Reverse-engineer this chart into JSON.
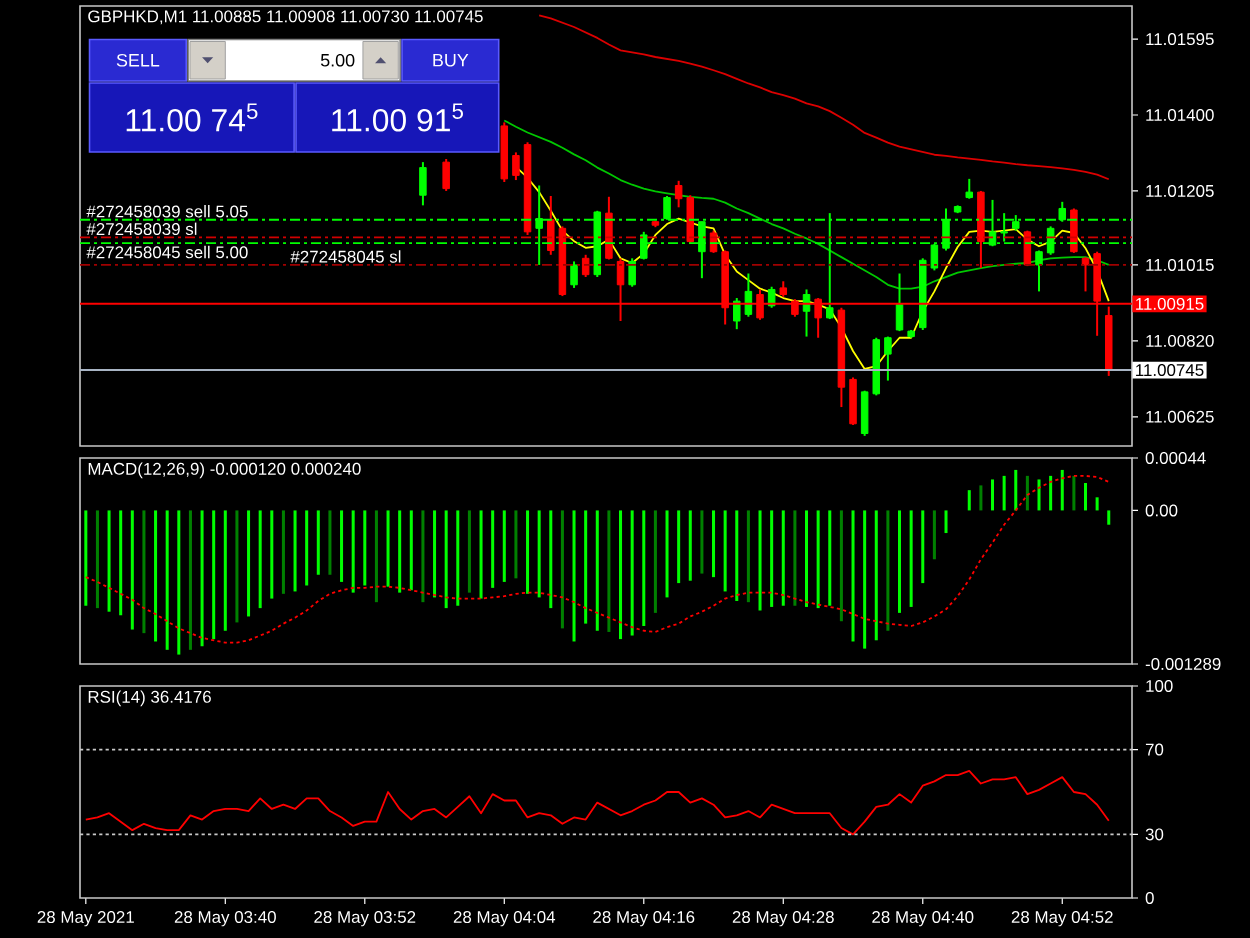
{
  "chart_data": [
    {
      "type": "candlestick",
      "title": "GBPHKD,M1 11.00885 11.00908 11.00730 11.00745",
      "categories": [
        null,
        null,
        null,
        null,
        null,
        null,
        null,
        null,
        null,
        null,
        null,
        null,
        null,
        null,
        null,
        null,
        null,
        null,
        null,
        null,
        null,
        null,
        null,
        null,
        null,
        null,
        null,
        null,
        null,
        null,
        null,
        null,
        null,
        null,
        null,
        null,
        null,
        null,
        null,
        null,
        null,
        null,
        null,
        null,
        null,
        null,
        null,
        null,
        null,
        null,
        null,
        null,
        null,
        null,
        null,
        null,
        null,
        null,
        null,
        null,
        null,
        null,
        null,
        null,
        null,
        null,
        null,
        null,
        null,
        null,
        null,
        null,
        null,
        null,
        null,
        null,
        null,
        null,
        null,
        null,
        null,
        null,
        null,
        null,
        null,
        null,
        null,
        null,
        null
      ],
      "ohlc": [
        null,
        null,
        null,
        null,
        null,
        null,
        null,
        null,
        null,
        null,
        null,
        null,
        null,
        null,
        null,
        null,
        null,
        null,
        null,
        null,
        null,
        null,
        null,
        null,
        null,
        null,
        null,
        null,
        null,
        [
          11.01194,
          11.01279,
          11.01168,
          11.01265
        ],
        null,
        [
          11.01279,
          11.01287,
          11.01205,
          11.01211
        ],
        null,
        null,
        null,
        null,
        [
          11.01372,
          11.01381,
          11.01228,
          11.01236
        ],
        [
          11.01296,
          11.01304,
          11.01233,
          11.01245
        ],
        [
          11.01324,
          11.0133,
          11.01092,
          11.011
        ],
        [
          11.01109,
          11.01219,
          11.01015,
          11.01134
        ],
        [
          11.01131,
          11.01192,
          11.01041,
          11.01052
        ],
        [
          11.01109,
          11.01114,
          11.00935,
          11.00939
        ],
        [
          11.00964,
          11.01024,
          11.00956,
          11.01015
        ],
        [
          11.01032,
          11.01041,
          11.00984,
          11.0099
        ],
        [
          11.0099,
          11.01154,
          11.00984,
          11.01151
        ],
        [
          11.01148,
          11.0119,
          11.01029,
          11.01032
        ],
        [
          11.01024,
          11.01032,
          11.00871,
          11.00964
        ],
        [
          11.00964,
          11.01032,
          11.00959,
          11.01024
        ],
        [
          11.01032,
          11.011,
          11.01029,
          11.01092
        ],
        [
          11.01126,
          11.01129,
          11.01112,
          11.01117
        ],
        [
          11.01134,
          11.01192,
          11.01131,
          11.01188
        ],
        [
          11.01219,
          11.01231,
          11.01163,
          11.01185
        ],
        [
          11.01188,
          11.01194,
          11.01071,
          11.01075
        ],
        [
          11.01049,
          11.01126,
          11.00981,
          11.01126
        ],
        [
          11.01097,
          11.01103,
          11.01046,
          11.01049
        ],
        [
          11.01049,
          11.01052,
          11.00862,
          11.00905
        ],
        [
          11.00871,
          11.0093,
          11.0085,
          11.00922
        ],
        [
          11.00888,
          11.00993,
          11.00882,
          11.00947
        ],
        [
          11.00939,
          11.00952,
          11.00874,
          11.00879
        ],
        [
          11.0091,
          11.00959,
          11.00905,
          11.00952
        ],
        [
          11.00956,
          11.00973,
          11.00933,
          11.00939
        ],
        [
          11.00922,
          11.00927,
          11.00882,
          11.00888
        ],
        [
          11.00896,
          11.00952,
          11.00831,
          11.00939
        ],
        [
          11.00927,
          11.0093,
          11.00828,
          11.00879
        ],
        [
          11.00879,
          11.01148,
          11.00876,
          11.00905
        ],
        [
          11.00899,
          11.00905,
          11.0065,
          11.00701
        ],
        [
          11.00721,
          11.00726,
          11.00604,
          11.00607
        ],
        [
          11.00582,
          11.00692,
          11.00576,
          11.00689
        ],
        [
          11.00684,
          11.00828,
          11.0068,
          11.00823
        ],
        [
          11.00786,
          11.00831,
          11.00718,
          11.00828
        ],
        [
          11.00848,
          11.00993,
          11.00845,
          11.00913
        ],
        [
          11.00831,
          11.00848,
          11.00828,
          11.00845
        ],
        [
          11.00854,
          11.01032,
          11.00848,
          11.01027
        ],
        [
          11.01007,
          11.01069,
          11.01001,
          11.01066
        ],
        [
          11.01058,
          11.0116,
          11.01052,
          11.01131
        ],
        [
          11.01151,
          11.01168,
          11.01148,
          11.01165
        ],
        [
          11.01188,
          11.01236,
          11.01185,
          11.01202
        ],
        [
          11.01202,
          11.01205,
          11.01007,
          11.01075
        ],
        [
          11.01066,
          11.01182,
          11.01063,
          11.011
        ],
        [
          11.01097,
          11.01148,
          11.01075,
          11.011
        ],
        [
          11.01109,
          11.01143,
          11.01103,
          11.01126
        ],
        [
          11.011,
          11.01103,
          11.01012,
          11.01015
        ],
        [
          11.01015,
          11.01052,
          11.00947,
          11.01049
        ],
        [
          11.01046,
          11.01114,
          11.01041,
          11.01109
        ],
        [
          11.01131,
          11.01177,
          11.01126,
          11.0116
        ],
        [
          11.01156,
          11.0116,
          11.01046,
          11.01049
        ],
        [
          11.01032,
          11.01035,
          11.00947,
          11.01015
        ],
        [
          11.01044,
          11.01049,
          11.00833,
          11.00922
        ],
        [
          11.00885,
          11.00908,
          11.0073,
          11.00745
        ]
      ],
      "colors": [
        null,
        null,
        null,
        null,
        null,
        null,
        null,
        null,
        null,
        null,
        null,
        null,
        null,
        null,
        null,
        null,
        null,
        null,
        null,
        null,
        null,
        null,
        null,
        null,
        null,
        null,
        null,
        null,
        null,
        "#00ff00",
        null,
        "#ff0000",
        null,
        null,
        null,
        null,
        "#ff0000",
        "#ff0000",
        "#ff0000",
        "#00ff00",
        "#ff0000",
        "#ff0000",
        "#00ff00",
        "#ff0000",
        "#00ff00",
        "#ff0000",
        "#ff0000",
        "#00ff00",
        "#00ff00",
        "#ff0000",
        "#00ff00",
        "#ff0000",
        "#ff0000",
        "#00ff00",
        "#ff0000",
        "#ff0000",
        "#00ff00",
        "#00ff00",
        "#ff0000",
        "#00ff00",
        "#ff0000",
        "#ff0000",
        "#00ff00",
        "#ff0000",
        "#00ff00",
        "#ff0000",
        "#ff0000",
        "#00ff00",
        "#00ff00",
        "#00ff00",
        "#00ff00",
        "#00ff00",
        "#00ff00",
        "#00ff00",
        "#00ff00",
        "#00ff00",
        "#00ff00",
        "#ff0000",
        "#00ff00",
        "#00ff00",
        "#00ff00",
        "#ff0000",
        "#00ff00",
        "#00ff00",
        "#00ff00",
        "#ff0000",
        "#ff0000",
        "#ff0000",
        "#ff0000"
      ],
      "series": [
        {
          "type": "line",
          "color": "#dc0000",
          "values": [
            null,
            null,
            null,
            null,
            null,
            null,
            null,
            null,
            null,
            null,
            null,
            null,
            null,
            null,
            null,
            null,
            null,
            null,
            null,
            null,
            null,
            null,
            null,
            null,
            null,
            null,
            null,
            null,
            null,
            null,
            null,
            null,
            null,
            null,
            null,
            null,
            null,
            null,
            null,
            11.01656,
            11.01648,
            11.01637,
            11.01626,
            11.01612,
            11.01598,
            11.01581,
            11.01566,
            11.01561,
            11.01556,
            11.01549,
            11.01544,
            11.01539,
            11.01532,
            11.01524,
            11.01515,
            11.01505,
            11.01493,
            11.01481,
            11.01471,
            11.01459,
            11.01451,
            11.01442,
            11.0143,
            11.01422,
            11.0141,
            11.01393,
            11.01375,
            11.01354,
            11.01342,
            11.01329,
            11.01319,
            11.01312,
            11.01305,
            11.01298,
            11.01295,
            11.01291,
            11.01288,
            11.01285,
            11.01281,
            11.01278,
            11.01274,
            11.01271,
            11.01269,
            11.01266,
            11.01263,
            11.01259,
            11.01254,
            11.01247,
            11.01235
          ]
        },
        {
          "type": "line",
          "color": "#00c800",
          "values": [
            null,
            null,
            null,
            null,
            null,
            null,
            null,
            null,
            null,
            null,
            null,
            null,
            null,
            null,
            null,
            null,
            null,
            null,
            null,
            null,
            null,
            null,
            null,
            null,
            null,
            null,
            null,
            null,
            null,
            null,
            null,
            null,
            null,
            null,
            null,
            null,
            11.01386,
            11.0137,
            11.01355,
            11.01343,
            11.01331,
            11.01316,
            11.01299,
            11.01284,
            11.01265,
            11.0125,
            11.01233,
            11.01221,
            11.01211,
            11.01204,
            11.01199,
            11.01194,
            11.0119,
            11.01187,
            11.01185,
            11.01175,
            11.0116,
            11.01148,
            11.01134,
            11.0112,
            11.01109,
            11.01095,
            11.01083,
            11.01069,
            11.01052,
            11.01035,
            11.01018,
            11.01001,
            11.00984,
            11.00964,
            11.00954,
            11.00954,
            11.00959,
            11.00973,
            11.00984,
            11.00995,
            11.01001,
            11.01007,
            11.01012,
            11.01015,
            11.01018,
            11.0102,
            11.01027,
            11.01032,
            11.01034,
            11.01035,
            11.01035,
            11.01027,
            11.01015
          ]
        },
        {
          "type": "line",
          "color": "#ffff00",
          "values": [
            null,
            null,
            null,
            null,
            null,
            null,
            null,
            null,
            null,
            null,
            null,
            null,
            null,
            null,
            null,
            null,
            null,
            null,
            null,
            null,
            null,
            null,
            null,
            null,
            null,
            null,
            null,
            null,
            null,
            null,
            null,
            null,
            null,
            null,
            null,
            null,
            null,
            11.01267,
            11.01239,
            11.01202,
            11.01154,
            11.01103,
            11.01076,
            11.01059,
            11.01063,
            11.0108,
            11.01032,
            11.0102,
            11.01044,
            11.01092,
            11.0112,
            11.01134,
            11.01124,
            11.01114,
            11.01109,
            11.01041,
            11.00998,
            11.00976,
            11.00954,
            11.00944,
            11.0093,
            11.00922,
            11.00922,
            11.00913,
            11.00901,
            11.00854,
            11.00794,
            11.00748,
            11.00755,
            11.00794,
            11.00828,
            11.00828,
            11.00896,
            11.00947,
            11.01007,
            11.01061,
            11.011,
            11.01103,
            11.011,
            11.01103,
            11.01107,
            11.0108,
            11.01063,
            11.01075,
            11.01103,
            11.01097,
            11.01058,
            11.01001,
            11.00922
          ]
        }
      ],
      "ylim": [
        11.0055,
        11.0168
      ],
      "yticks": [
        11.01595,
        {
          "value": 11.014,
          "label": "11.01400"
        },
        11.01205,
        11.01015,
        {
          "value": 11.0082,
          "label": "11.00820"
        },
        11.00625
      ],
      "ref_lines": [
        {
          "axis": "y",
          "value": 11.01131,
          "label": "#272458039 sell 5.05",
          "color": "#00ff00",
          "line_style": "dashdot"
        },
        {
          "axis": "y",
          "value": 11.01086,
          "label": "#272458039 sl",
          "color": "#d20000",
          "line_style": "dashdot"
        },
        {
          "axis": "y",
          "value": 11.01071,
          "label": "#272458045 sell 5.00",
          "color": "#00ff00",
          "line_style": "dashdot"
        },
        {
          "axis": "y",
          "value": 11.01015,
          "label": "#272458045 sl",
          "color": "#a00000",
          "line_style": "dashdot"
        },
        {
          "axis": "y",
          "value": 11.00915,
          "label": "11.00915",
          "color": "#ff0000",
          "line_style": "solid"
        },
        {
          "axis": "y",
          "value": 11.00745,
          "label": "11.00745",
          "color": "#a8b4c4",
          "line_style": "solid"
        }
      ],
      "annotations": [
        "SELL",
        "5.00",
        "BUY",
        "11.00 74$^{5}$",
        "11.00 91$^{5}$"
      ]
    },
    {
      "type": "bar",
      "title": "MACD(12,26,9) -0.000120 0.000240",
      "categories": [
        null,
        null,
        null,
        null,
        null,
        null,
        null,
        null,
        null,
        null,
        null,
        null,
        null,
        null,
        null,
        null,
        null,
        null,
        null,
        null,
        null,
        null,
        null,
        null,
        null,
        null,
        null,
        null,
        null,
        null,
        null,
        null,
        null,
        null,
        null,
        null,
        null,
        null,
        null,
        null,
        null,
        null,
        null,
        null,
        null,
        null,
        null,
        null,
        null,
        null,
        null,
        null,
        null,
        null,
        null,
        null,
        null,
        null,
        null,
        null,
        null,
        null,
        null,
        null,
        null,
        null,
        null,
        null,
        null,
        null,
        null,
        null,
        null,
        null,
        null,
        null,
        null,
        null,
        null,
        null,
        null,
        null,
        null,
        null,
        null,
        null,
        null,
        null,
        null
      ],
      "series": [
        {
          "type": "bar",
          "values": [
            -0.0008,
            -0.00082,
            -0.00085,
            -0.00088,
            -0.001,
            -0.00103,
            -0.0011,
            -0.00117,
            -0.00121,
            -0.00117,
            -0.00114,
            -0.00108,
            -0.00101,
            -0.00094,
            -0.00089,
            -0.00082,
            -0.00074,
            -0.0007,
            -0.00068,
            -0.00063,
            -0.00054,
            -0.00054,
            -0.0006,
            -0.00069,
            -0.00063,
            -0.00077,
            -0.00064,
            -0.00069,
            -0.00067,
            -0.00077,
            -0.00073,
            -0.00082,
            -0.0008,
            -0.00069,
            -0.00074,
            -0.00065,
            -0.0006,
            -0.00057,
            -0.0007,
            -0.00073,
            -0.00082,
            -0.00099,
            -0.0011,
            -0.00095,
            -0.00101,
            -0.00102,
            -0.00108,
            -0.00105,
            -0.00097,
            -0.00086,
            -0.00073,
            -0.00061,
            -0.00059,
            -0.00053,
            -0.00056,
            -0.00068,
            -0.00076,
            -0.00077,
            -0.00084,
            -0.00081,
            -0.0008,
            -0.0008,
            -0.00081,
            -0.00082,
            -0.0008,
            -0.00093,
            -0.0011,
            -0.00116,
            -0.00109,
            -0.00101,
            -0.00086,
            -0.00081,
            -0.00061,
            -0.00041,
            -0.00019,
            null,
            0.00017,
            0.00021,
            0.00026,
            0.00029,
            0.00034,
            0.00029,
            0.00026,
            0.00029,
            0.00034,
            0.00029,
            0.00023,
            0.00011,
            -0.00012
          ],
          "colors": [
            "#00ff00",
            "#008000",
            "#00ff00",
            "#00ff00",
            "#00ff00",
            "#008000",
            "#00ff00",
            "#00ff00",
            "#00ff00",
            "#008000",
            "#00ff00",
            "#00ff00",
            "#00ff00",
            "#008000",
            "#00ff00",
            "#00ff00",
            "#00ff00",
            "#008000",
            "#00ff00",
            "#00ff00",
            "#00ff00",
            "#008000",
            "#00ff00",
            "#00ff00",
            "#00ff00",
            "#008000",
            "#00ff00",
            "#00ff00",
            "#00ff00",
            "#008000",
            "#00ff00",
            "#00ff00",
            "#00ff00",
            "#008000",
            "#00ff00",
            "#00ff00",
            "#00ff00",
            "#008000",
            "#00ff00",
            "#00ff00",
            "#00ff00",
            "#008000",
            "#00ff00",
            "#00ff00",
            "#00ff00",
            "#008000",
            "#00ff00",
            "#00ff00",
            "#00ff00",
            "#008000",
            "#00ff00",
            "#00ff00",
            "#00ff00",
            "#008000",
            "#00ff00",
            "#00ff00",
            "#00ff00",
            "#008000",
            "#00ff00",
            "#00ff00",
            "#00ff00",
            "#008000",
            "#00ff00",
            "#00ff00",
            "#00ff00",
            "#008000",
            "#00ff00",
            "#00ff00",
            "#00ff00",
            "#008000",
            "#00ff00",
            "#00ff00",
            "#00ff00",
            "#008000",
            "#00ff00",
            null,
            "#00ff00",
            "#008000",
            "#00ff00",
            "#00ff00",
            "#00ff00",
            "#008000",
            "#00ff00",
            "#00ff00",
            "#00ff00",
            "#008000",
            "#00ff00",
            "#00ff00",
            "#00ff00"
          ]
        },
        {
          "type": "line",
          "color": "#ff0000",
          "line_style": "dotted",
          "values": [
            -0.00056,
            -0.0006,
            -0.00065,
            -0.0007,
            -0.00075,
            -0.00082,
            -0.00087,
            -0.00093,
            -0.00099,
            -0.00103,
            -0.00107,
            -0.00109,
            -0.00111,
            -0.00111,
            -0.00109,
            -0.00105,
            -0.00101,
            -0.00095,
            -0.0009,
            -0.00084,
            -0.00076,
            -0.0007,
            -0.00067,
            -0.00065,
            -0.00065,
            -0.00064,
            -0.00064,
            -0.00065,
            -0.00067,
            -0.00069,
            -0.00071,
            -0.00073,
            -0.00074,
            -0.00074,
            -0.00074,
            -0.00073,
            -0.00072,
            -0.0007,
            -0.00069,
            -0.00069,
            -0.00071,
            -0.00073,
            -0.00077,
            -0.00082,
            -0.00086,
            -0.0009,
            -0.00094,
            -0.00098,
            -0.00101,
            -0.00102,
            -0.00098,
            -0.00095,
            -0.00089,
            -0.00085,
            -0.0008,
            -0.00074,
            -0.00071,
            -0.00069,
            -0.00069,
            -0.00069,
            -0.00071,
            -0.00074,
            -0.00077,
            -0.00079,
            -0.00081,
            -0.00083,
            -0.00087,
            -0.00091,
            -0.00093,
            -0.00095,
            -0.00096,
            -0.00097,
            -0.00094,
            -0.00089,
            -0.00083,
            -0.00072,
            -0.00058,
            -0.00041,
            -0.00027,
            -0.00012,
            0,
            0.00013,
            0.00019,
            0.00024,
            0.00027,
            0.00029,
            0.00029,
            0.00028,
            0.00024
          ]
        }
      ],
      "ylim": [
        -0.001289,
        0.00044
      ],
      "yticks": [
        0.00044,
        {
          "value": 0,
          "label": "0.00"
        },
        -0.001289
      ]
    },
    {
      "type": "line",
      "title": "RSI(14) 36.4176",
      "categories": [
        "28 May 2021",
        null,
        null,
        null,
        null,
        null,
        null,
        null,
        null,
        null,
        null,
        null,
        "28 May 03:40",
        null,
        null,
        null,
        null,
        null,
        null,
        null,
        null,
        null,
        null,
        null,
        "28 May 03:52",
        null,
        null,
        null,
        null,
        null,
        null,
        null,
        null,
        null,
        null,
        null,
        "28 May 04:04",
        null,
        null,
        null,
        null,
        null,
        null,
        null,
        null,
        null,
        null,
        null,
        "28 May 04:16",
        null,
        null,
        null,
        null,
        null,
        null,
        null,
        null,
        null,
        null,
        null,
        "28 May 04:28",
        null,
        null,
        null,
        null,
        null,
        null,
        null,
        null,
        null,
        null,
        null,
        "28 May 04:40",
        null,
        null,
        null,
        null,
        null,
        null,
        null,
        null,
        null,
        null,
        null,
        "28 May 04:52",
        null,
        null,
        null,
        null
      ],
      "values": [
        37,
        38,
        40,
        36,
        32,
        35,
        33,
        32,
        32,
        39,
        37,
        41,
        42,
        42,
        41,
        47,
        42,
        44,
        42,
        47,
        47,
        41,
        38,
        34,
        36,
        36,
        50,
        42,
        37,
        41,
        42,
        38,
        43,
        48,
        40,
        49,
        46,
        46,
        38,
        40,
        39,
        35,
        38,
        37,
        45,
        42,
        39,
        41,
        44,
        46,
        50,
        50,
        45,
        47,
        44,
        38,
        39,
        41,
        38,
        44,
        42,
        40,
        40,
        40,
        40,
        33,
        30,
        36,
        43,
        44,
        49,
        45,
        53,
        55,
        58,
        58,
        60,
        54,
        56,
        56,
        57,
        49,
        51,
        54,
        57,
        50,
        49,
        44,
        36.4176
      ],
      "color": "#ff0000",
      "ylim": [
        0,
        100
      ],
      "yticks": [
        100,
        70,
        30,
        0
      ],
      "ref_lines": [
        {
          "axis": "y",
          "value": 70,
          "color": "#c8c8c8",
          "line_style": "dotted"
        },
        {
          "axis": "y",
          "value": 30,
          "color": "#c8c8c8",
          "line_style": "dotted"
        }
      ]
    }
  ]
}
